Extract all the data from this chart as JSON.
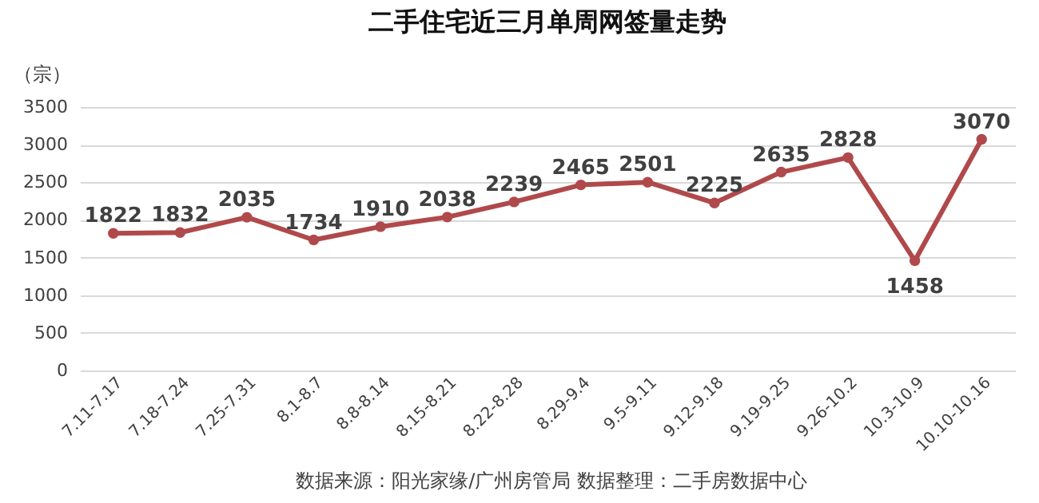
{
  "chart_data": {
    "type": "line",
    "title": "二手住宅近三月单周网签量走势",
    "ylabel": "（宗）",
    "categories": [
      "7.11-7.17",
      "7.18-7.24",
      "7.25-7.31",
      "8.1-8.7",
      "8.8-8.14",
      "8.15-8.21",
      "8.22-8.28",
      "8.29-9.4",
      "9.5-9.11",
      "9.12-9.18",
      "9.19-9.25",
      "9.26-10.2",
      "10.3-10.9",
      "10.10-10.16"
    ],
    "series": [
      {
        "color": "#b0494b",
        "values": [
          1822,
          1832,
          2035,
          1734,
          1910,
          2038,
          2239,
          2465,
          2501,
          2225,
          2635,
          2828,
          1458,
          3070
        ]
      }
    ],
    "ylim": [
      0,
      3500
    ],
    "yticks": [
      0,
      500,
      1000,
      1500,
      2000,
      2500,
      3000,
      3500
    ],
    "grid": "y",
    "marker": "circle",
    "line_style": "solid",
    "data_labels": true,
    "annotations": [
      "数据来源：阳光家缘/广州房管局  数据整理：二手房数据中心"
    ]
  }
}
